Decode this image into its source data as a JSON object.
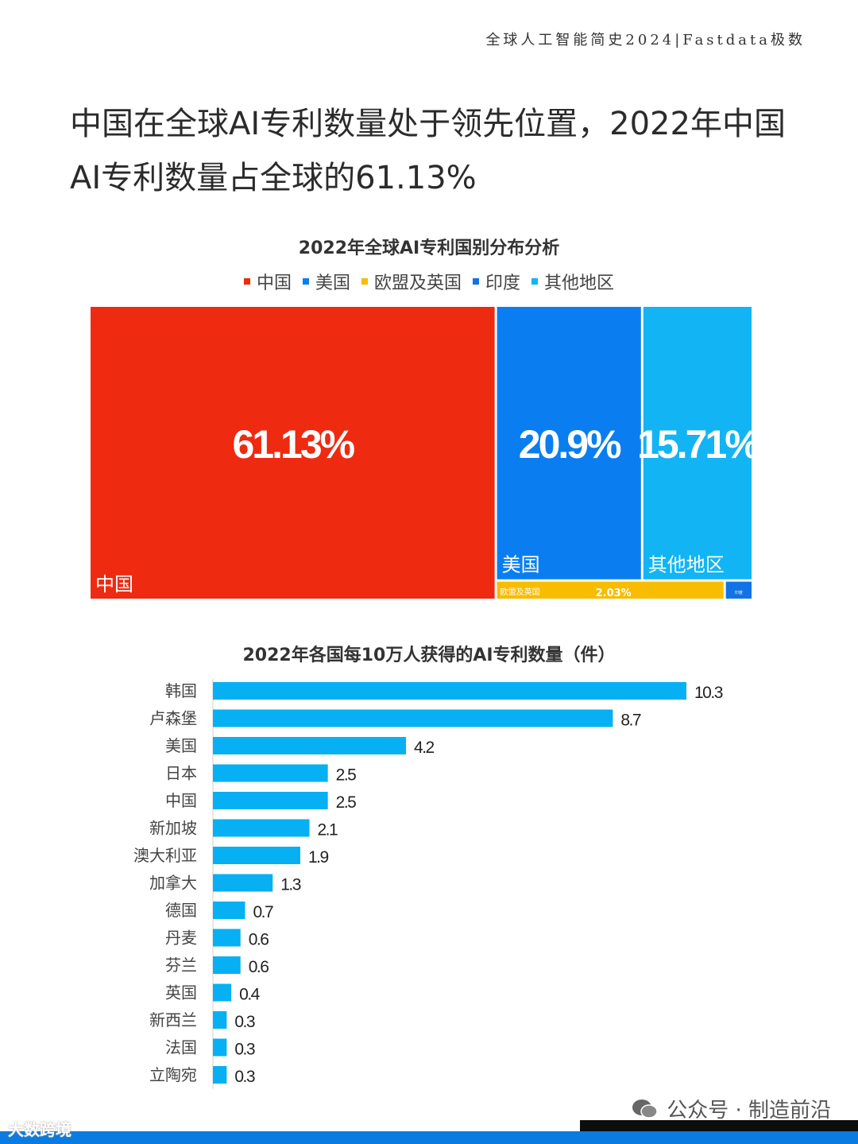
{
  "header": {
    "brand": "全球人工智能简史2024|Fastdata极数"
  },
  "headline": "中国在全球AI专利数量处于领先位置，2022年中国AI专利数量占全球的61.13%",
  "colors": {
    "china": "#ee2a10",
    "usa": "#0a7ef0",
    "eu_uk": "#f8bc00",
    "india": "#1273e6",
    "others": "#12b4f4",
    "bar": "#06b0f2"
  },
  "chart_data": [
    {
      "type": "treemap",
      "title": "2022年全球AI专利国别分布分析",
      "legend": [
        "中国",
        "美国",
        "欧盟及英国",
        "印度",
        "其他地区"
      ],
      "legend_position": "top",
      "items": [
        {
          "name": "中国",
          "value": 61.13,
          "value_label": "61.13%"
        },
        {
          "name": "美国",
          "value": 20.9,
          "value_label": "20.9%"
        },
        {
          "name": "其他地区",
          "value": 15.71,
          "value_label": "15.71%"
        },
        {
          "name": "欧盟及英国",
          "value": 2.03,
          "value_label": "2.03%"
        },
        {
          "name": "印度",
          "value": 0.23,
          "value_label": ""
        }
      ],
      "india_box_label": "印度"
    },
    {
      "type": "bar",
      "orientation": "horizontal",
      "title": "2022年各国每10万人获得的AI专利数量（件）",
      "categories": [
        "韩国",
        "卢森堡",
        "美国",
        "日本",
        "中国",
        "新加坡",
        "澳大利亚",
        "加拿大",
        "德国",
        "丹麦",
        "芬兰",
        "英国",
        "新西兰",
        "法国",
        "立陶宛"
      ],
      "values": [
        10.3,
        8.7,
        4.2,
        2.5,
        2.5,
        2.1,
        1.9,
        1.3,
        0.7,
        0.6,
        0.6,
        0.4,
        0.3,
        0.3,
        0.3
      ],
      "value_labels": [
        "10.3",
        "8.7",
        "4.2",
        "2.5",
        "2.5",
        "2.1",
        "1.9",
        "1.3",
        "0.7",
        "0.6",
        "0.6",
        "0.4",
        "0.3",
        "0.3",
        "0.3"
      ]
    }
  ],
  "footer": {
    "left_watermark": "大数跨境",
    "right_watermark": "公众号 · 制造前沿",
    "wechat_icon": "wechat-icon"
  }
}
